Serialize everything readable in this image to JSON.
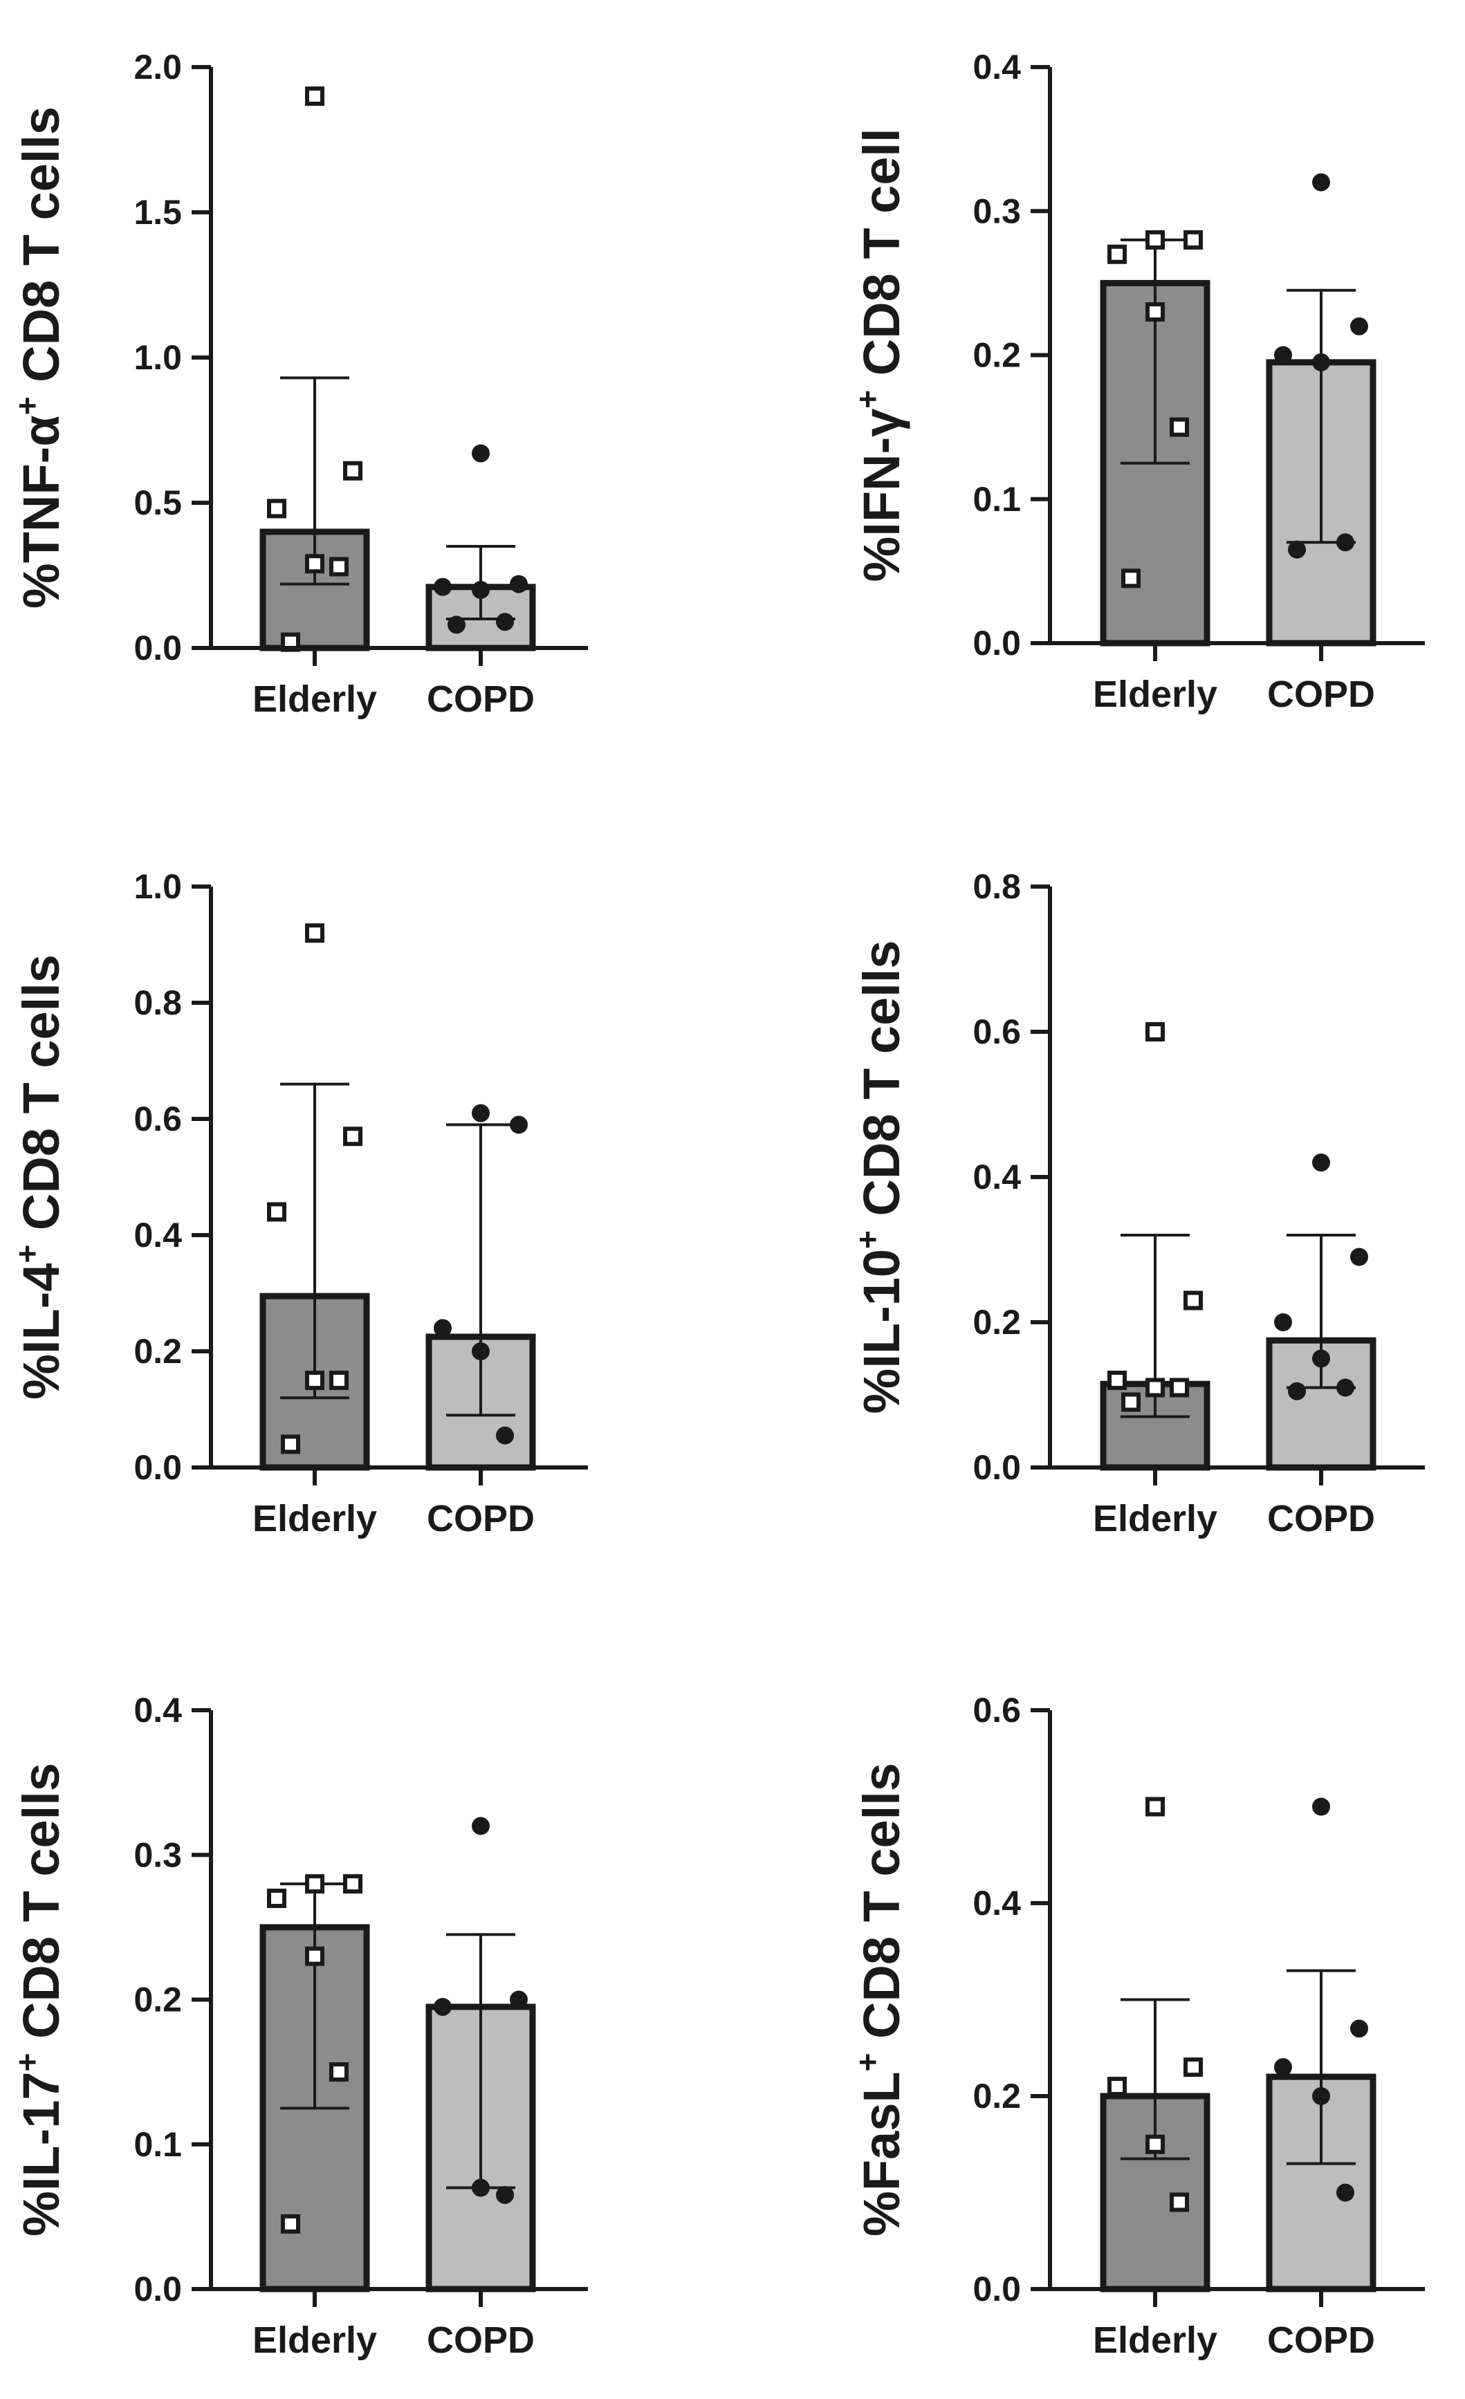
{
  "colors": {
    "axis": "#1a1a1a",
    "elderly_bar": "#8c8c8c",
    "copd_bar": "#bdbdbd",
    "marker": "#1a1a1a"
  },
  "chart_data": [
    {
      "type": "bar",
      "panel": "top-left",
      "ylabel_prefix": "%TNF-α",
      "ylabel_sup": "+",
      "ylabel_suffix": " CD8 T cells",
      "categories": [
        "Elderly",
        "COPD"
      ],
      "ylim": [
        0,
        2.0
      ],
      "yticks": [
        0.0,
        0.5,
        1.0,
        1.5,
        2.0
      ],
      "ytick_labels": [
        "0.0",
        "0.5",
        "1.0",
        "1.5",
        "2.0"
      ],
      "bars": [
        {
          "name": "Elderly",
          "value": 0.4,
          "err_upper": 0.93,
          "err_lower": 0.22,
          "points": [
            1.9,
            0.61,
            0.48,
            0.29,
            0.28,
            0.02
          ],
          "marker": "open-square"
        },
        {
          "name": "COPD",
          "value": 0.21,
          "err_upper": 0.35,
          "err_lower": 0.1,
          "points": [
            0.67,
            0.22,
            0.21,
            0.2,
            0.09,
            0.08
          ],
          "marker": "filled-circle"
        }
      ]
    },
    {
      "type": "bar",
      "panel": "top-right",
      "ylabel_prefix": "%IFN-γ",
      "ylabel_sup": "+",
      "ylabel_suffix": " CD8 T cell",
      "categories": [
        "Elderly",
        "COPD"
      ],
      "ylim": [
        0,
        0.4
      ],
      "yticks": [
        0.0,
        0.1,
        0.2,
        0.3,
        0.4
      ],
      "ytick_labels": [
        "0.0",
        "0.1",
        "0.2",
        "0.3",
        "0.4"
      ],
      "bars": [
        {
          "name": "Elderly",
          "value": 0.25,
          "err_upper": 0.28,
          "err_lower": 0.125,
          "points": [
            0.28,
            0.28,
            0.27,
            0.23,
            0.15,
            0.045
          ],
          "marker": "open-square"
        },
        {
          "name": "COPD",
          "value": 0.195,
          "err_upper": 0.245,
          "err_lower": 0.07,
          "points": [
            0.32,
            0.22,
            0.2,
            0.195,
            0.07,
            0.065
          ],
          "marker": "filled-circle"
        }
      ]
    },
    {
      "type": "bar",
      "panel": "middle-left",
      "ylabel_prefix": "%IL-4",
      "ylabel_sup": "+",
      "ylabel_suffix": " CD8 T cells",
      "categories": [
        "Elderly",
        "COPD"
      ],
      "ylim": [
        0,
        1.0
      ],
      "yticks": [
        0.0,
        0.2,
        0.4,
        0.6,
        0.8,
        1.0
      ],
      "ytick_labels": [
        "0.0",
        "0.2",
        "0.4",
        "0.6",
        "0.8",
        "1.0"
      ],
      "bars": [
        {
          "name": "Elderly",
          "value": 0.295,
          "err_upper": 0.66,
          "err_lower": 0.12,
          "points": [
            0.92,
            0.57,
            0.44,
            0.15,
            0.15,
            0.04
          ],
          "marker": "open-square"
        },
        {
          "name": "COPD",
          "value": 0.225,
          "err_upper": 0.59,
          "err_lower": 0.09,
          "points": [
            0.61,
            0.59,
            0.24,
            0.2,
            0.055
          ],
          "marker": "filled-circle"
        }
      ]
    },
    {
      "type": "bar",
      "panel": "middle-right",
      "ylabel_prefix": "%IL-10",
      "ylabel_sup": "+",
      "ylabel_suffix": " CD8 T cells",
      "categories": [
        "Elderly",
        "COPD"
      ],
      "ylim": [
        0,
        0.8
      ],
      "yticks": [
        0.0,
        0.2,
        0.4,
        0.6,
        0.8
      ],
      "ytick_labels": [
        "0.0",
        "0.2",
        "0.4",
        "0.6",
        "0.8"
      ],
      "bars": [
        {
          "name": "Elderly",
          "value": 0.115,
          "err_upper": 0.32,
          "err_lower": 0.07,
          "points": [
            0.6,
            0.23,
            0.12,
            0.11,
            0.11,
            0.09
          ],
          "marker": "open-square"
        },
        {
          "name": "COPD",
          "value": 0.175,
          "err_upper": 0.32,
          "err_lower": 0.11,
          "points": [
            0.42,
            0.29,
            0.2,
            0.15,
            0.11,
            0.105
          ],
          "marker": "filled-circle"
        }
      ]
    },
    {
      "type": "bar",
      "panel": "bottom-left",
      "ylabel_prefix": "%IL-17",
      "ylabel_sup": "+",
      "ylabel_suffix": " CD8 T cells",
      "categories": [
        "Elderly",
        "COPD"
      ],
      "ylim": [
        0,
        0.4
      ],
      "yticks": [
        0.0,
        0.1,
        0.2,
        0.3,
        0.4
      ],
      "ytick_labels": [
        "0.0",
        "0.1",
        "0.2",
        "0.3",
        "0.4"
      ],
      "bars": [
        {
          "name": "Elderly",
          "value": 0.25,
          "err_upper": 0.28,
          "err_lower": 0.125,
          "points": [
            0.28,
            0.28,
            0.27,
            0.23,
            0.15,
            0.045
          ],
          "marker": "open-square"
        },
        {
          "name": "COPD",
          "value": 0.195,
          "err_upper": 0.245,
          "err_lower": 0.07,
          "points": [
            0.32,
            0.2,
            0.195,
            0.07,
            0.065
          ],
          "marker": "filled-circle"
        }
      ]
    },
    {
      "type": "bar",
      "panel": "bottom-right",
      "ylabel_prefix": "%FasL",
      "ylabel_sup": "+",
      "ylabel_suffix": " CD8 T cells",
      "categories": [
        "Elderly",
        "COPD"
      ],
      "ylim": [
        0,
        0.6
      ],
      "yticks": [
        0.0,
        0.2,
        0.4,
        0.6
      ],
      "ytick_labels": [
        "0.0",
        "0.2",
        "0.4",
        "0.6"
      ],
      "bars": [
        {
          "name": "Elderly",
          "value": 0.2,
          "err_upper": 0.3,
          "err_lower": 0.135,
          "points": [
            0.5,
            0.23,
            0.21,
            0.15,
            0.09
          ],
          "marker": "open-square"
        },
        {
          "name": "COPD",
          "value": 0.22,
          "err_upper": 0.33,
          "err_lower": 0.13,
          "points": [
            0.5,
            0.27,
            0.23,
            0.2,
            0.1
          ],
          "marker": "filled-circle"
        }
      ]
    }
  ]
}
